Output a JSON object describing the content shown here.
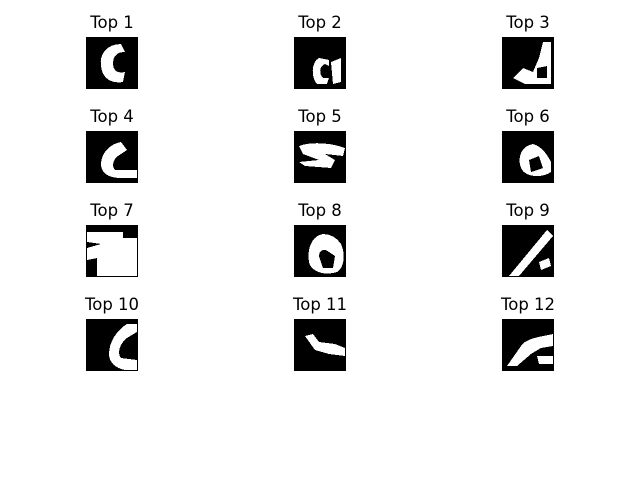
{
  "figure": {
    "panels": [
      {
        "title": "Top 1",
        "image": "digit-patch-1"
      },
      {
        "title": "Top 2",
        "image": "digit-patch-2"
      },
      {
        "title": "Top 3",
        "image": "digit-patch-3"
      },
      {
        "title": "Top 4",
        "image": "digit-patch-4"
      },
      {
        "title": "Top 5",
        "image": "digit-patch-5"
      },
      {
        "title": "Top 6",
        "image": "digit-patch-6"
      },
      {
        "title": "Top 7",
        "image": "digit-patch-7"
      },
      {
        "title": "Top 8",
        "image": "digit-patch-8"
      },
      {
        "title": "Top 9",
        "image": "digit-patch-9"
      },
      {
        "title": "Top 10",
        "image": "digit-patch-10"
      },
      {
        "title": "Top 11",
        "image": "digit-patch-11"
      },
      {
        "title": "Top 12",
        "image": "digit-patch-12"
      }
    ],
    "colors": {
      "background": "#ffffff",
      "patch_background": "#000000",
      "stroke": "#ffffff",
      "border": "#000000"
    }
  }
}
